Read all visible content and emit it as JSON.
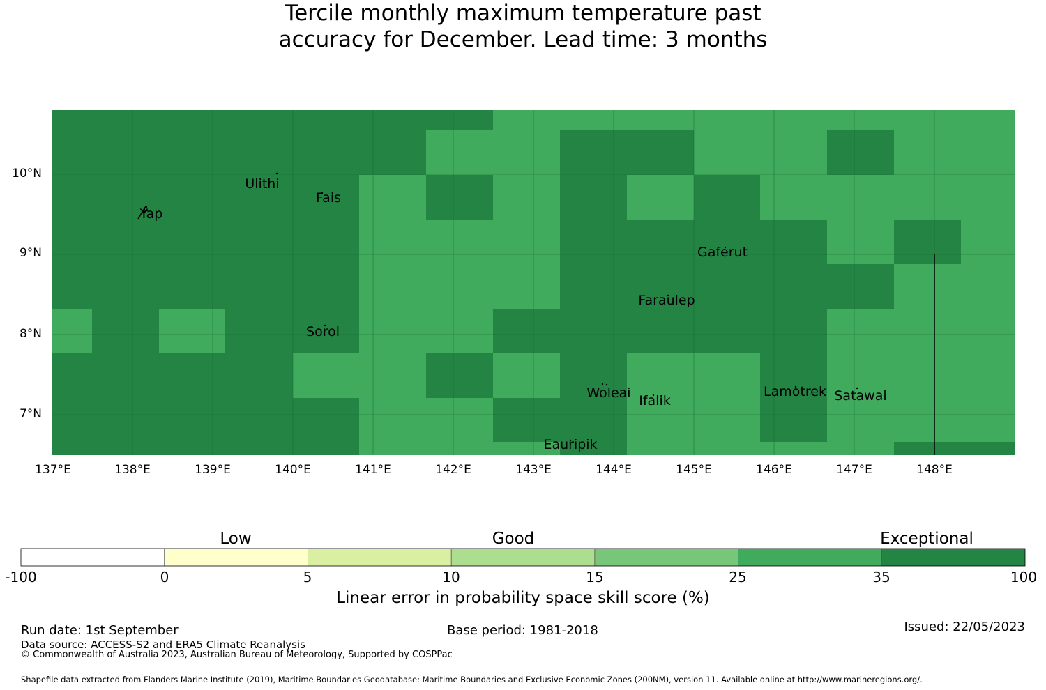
{
  "title": {
    "line1": "Tercile monthly maximum temperature past",
    "line2": "accuracy for December. Lead time: 3 months"
  },
  "colors": {
    "dark_green": "#238443",
    "light_green": "#41ab5d",
    "colorbar": [
      "#ffffff",
      "#ffffcc",
      "#d9f0a3",
      "#addd8e",
      "#78c679",
      "#41ab5d",
      "#238443"
    ]
  },
  "map": {
    "lat_labels": [
      "10°N",
      "9°N",
      "8°N",
      "7°N"
    ],
    "lon_labels": [
      "137°E",
      "138°E",
      "139°E",
      "140°E",
      "141°E",
      "142°E",
      "143°E",
      "144°E",
      "145°E",
      "146°E",
      "147°E",
      "148°E"
    ],
    "places": [
      {
        "name": "Yap",
        "icon": "island-marker"
      },
      {
        "name": "Ulithi",
        "icon": "island-marker"
      },
      {
        "name": "Fais",
        "icon": "island-marker"
      },
      {
        "name": "Gaferut",
        "icon": "island-marker"
      },
      {
        "name": "Faraulep",
        "icon": "island-marker"
      },
      {
        "name": "Sorol",
        "icon": "island-marker"
      },
      {
        "name": "Woleai",
        "icon": "island-marker"
      },
      {
        "name": "Ifalik",
        "icon": "island-marker"
      },
      {
        "name": "Lamotrek",
        "icon": "island-marker"
      },
      {
        "name": "Satawal",
        "icon": "island-marker"
      },
      {
        "name": "Eauripik",
        "icon": "island-marker"
      }
    ]
  },
  "colorbar": {
    "categories": [
      "Low",
      "Good",
      "Exceptional"
    ],
    "ticks": [
      "-100",
      "0",
      "5",
      "10",
      "15",
      "25",
      "35",
      "100"
    ],
    "label": "Linear error in probability space skill score (%)"
  },
  "footer": {
    "run_date": "Run date: 1st September",
    "base_period": "Base period: 1981-2018",
    "issued": "Issued: 22/05/2023",
    "data_source": "Data source: ACCESS-S2 and ERA5 Climate Reanalysis",
    "copyright": "© Commonwealth of Australia 2023, Australian Bureau of Meteorology, Supported by COSPPac",
    "shapefile": "Shapefile data extracted from Flanders Marine Institute (2019), Maritime Boundaries Geodatabase: Maritime Boundaries and Exclusive Economic Zones (200NM), version 11. Available online at http://www.marineregions.org/."
  }
}
